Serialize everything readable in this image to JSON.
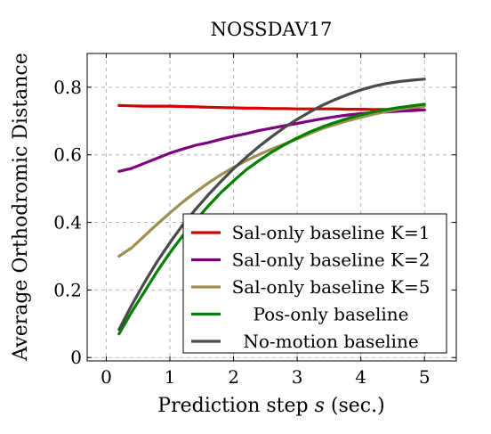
{
  "chart_data": {
    "type": "line",
    "title": "NOSSDAV17",
    "xlabel": "Prediction step s (sec.)",
    "xlabel_parts": {
      "prefix": "Prediction step ",
      "var": "s",
      "suffix": " (sec.)"
    },
    "ylabel": "Average Orthodromic Distance",
    "xlim": [
      -0.3,
      5.5
    ],
    "ylim": [
      -0.01,
      0.9
    ],
    "xticks": [
      0,
      1,
      2,
      3,
      4,
      5
    ],
    "xtick_labels": [
      "0",
      "1",
      "2",
      "3",
      "4",
      "5"
    ],
    "yticks": [
      0,
      0.2,
      0.4,
      0.6,
      0.8
    ],
    "ytick_labels": [
      "0",
      "0.2",
      "0.4",
      "0.6",
      "0.8"
    ],
    "grid": true,
    "legend_position": "lower-right",
    "x": [
      0.2,
      0.4,
      0.6,
      0.8,
      1.0,
      1.2,
      1.4,
      1.6,
      1.8,
      2.0,
      2.2,
      2.4,
      2.6,
      2.8,
      3.0,
      3.2,
      3.4,
      3.6,
      3.8,
      4.0,
      4.2,
      4.4,
      4.6,
      4.8,
      5.0
    ],
    "series": [
      {
        "name": "Sal-only baseline K=1",
        "color": "#d40000",
        "values": [
          0.746,
          0.745,
          0.744,
          0.744,
          0.744,
          0.743,
          0.742,
          0.741,
          0.74,
          0.739,
          0.738,
          0.738,
          0.737,
          0.737,
          0.736,
          0.736,
          0.736,
          0.736,
          0.735,
          0.735,
          0.734,
          0.734,
          0.734,
          0.734,
          0.733
        ]
      },
      {
        "name": "Sal-only baseline K=2",
        "color": "#7f007f",
        "values": [
          0.551,
          0.56,
          0.575,
          0.59,
          0.605,
          0.617,
          0.628,
          0.636,
          0.646,
          0.655,
          0.663,
          0.672,
          0.679,
          0.686,
          0.693,
          0.7,
          0.707,
          0.713,
          0.718,
          0.722,
          0.725,
          0.727,
          0.729,
          0.731,
          0.733
        ]
      },
      {
        "name": "Sal-only baseline K=5",
        "color": "#9b9050",
        "values": [
          0.3,
          0.325,
          0.36,
          0.395,
          0.428,
          0.46,
          0.489,
          0.516,
          0.541,
          0.563,
          0.583,
          0.601,
          0.617,
          0.632,
          0.647,
          0.663,
          0.678,
          0.69,
          0.701,
          0.711,
          0.72,
          0.728,
          0.735,
          0.74,
          0.744
        ]
      },
      {
        "name": "Pos-only baseline",
        "color": "#008000",
        "values": [
          0.07,
          0.135,
          0.195,
          0.255,
          0.31,
          0.36,
          0.405,
          0.448,
          0.488,
          0.523,
          0.556,
          0.583,
          0.608,
          0.63,
          0.65,
          0.668,
          0.683,
          0.696,
          0.708,
          0.718,
          0.727,
          0.734,
          0.74,
          0.745,
          0.75
        ]
      },
      {
        "name": "No-motion baseline",
        "color": "#4a4a4a",
        "values": [
          0.083,
          0.155,
          0.222,
          0.284,
          0.34,
          0.392,
          0.438,
          0.481,
          0.521,
          0.559,
          0.593,
          0.625,
          0.654,
          0.681,
          0.705,
          0.727,
          0.747,
          0.764,
          0.779,
          0.792,
          0.803,
          0.811,
          0.817,
          0.821,
          0.824
        ]
      }
    ]
  }
}
